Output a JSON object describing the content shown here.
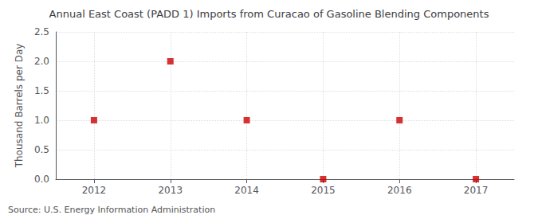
{
  "chart_data": {
    "type": "scatter",
    "title": "Annual East Coast (PADD 1) Imports from Curacao of Gasoline Blending Components",
    "ylabel": "Thousand Barrels per Day",
    "source": "Source: U.S. Energy Information Administration",
    "x": [
      2012,
      2013,
      2014,
      2015,
      2016,
      2017
    ],
    "values": [
      1.0,
      2.0,
      1.0,
      0.0,
      1.0,
      0.0
    ],
    "color": "#cc0000",
    "marker": "square",
    "xlim": [
      2011.5,
      2017.5
    ],
    "xticks": [
      2012,
      2013,
      2014,
      2015,
      2016,
      2017
    ],
    "ylim": [
      0.0,
      2.5
    ],
    "yticks": [
      {
        "value": 0.0,
        "label": "0.0"
      },
      {
        "value": 0.5,
        "label": "0.5"
      },
      {
        "value": 1.0,
        "label": "1.0"
      },
      {
        "value": 1.5,
        "label": "1.5"
      },
      {
        "value": 2.0,
        "label": "2.0"
      },
      {
        "value": 2.5,
        "label": "2.5"
      }
    ],
    "grid": true
  }
}
